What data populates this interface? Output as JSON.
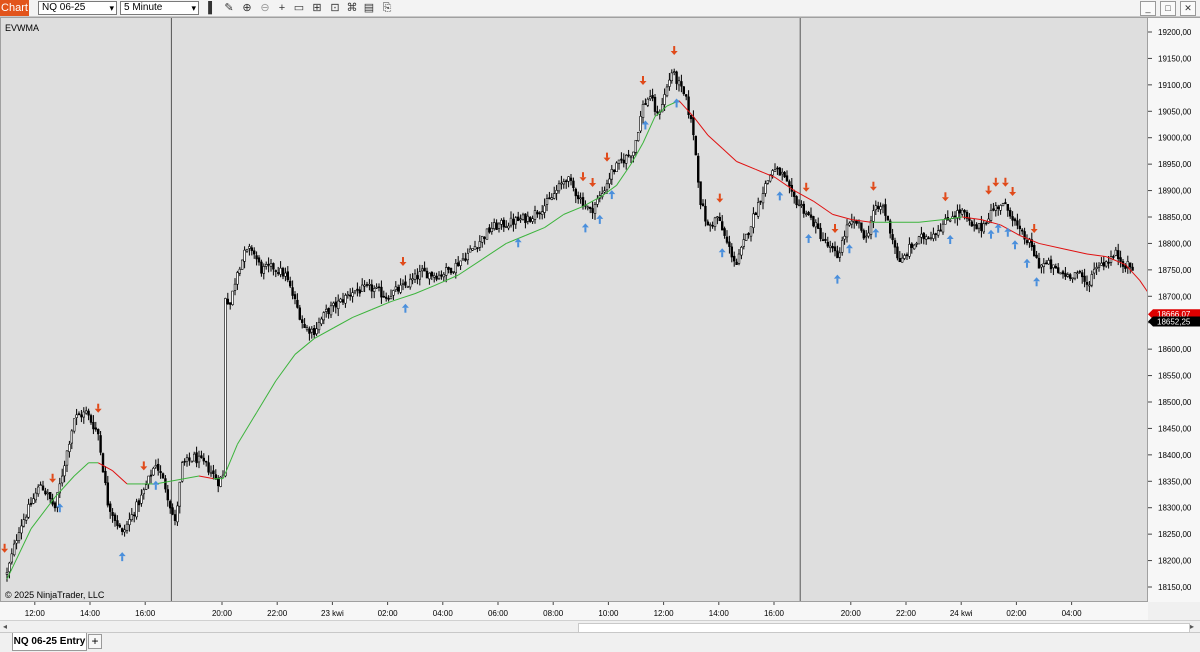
{
  "toolbar": {
    "app_label": "Chart",
    "instrument": "NQ 06-25",
    "interval": "5 Minute",
    "icons": [
      "bar-style-icon",
      "draw-tool-icon",
      "zoom-in-icon",
      "zoom-out-icon",
      "crosshair-icon",
      "data-box-icon",
      "properties-icon",
      "indicators-icon",
      "strategies-icon",
      "template-icon",
      "attach-icon",
      "chart-trader-icon",
      "link-icon"
    ],
    "window_buttons": [
      "minimize-icon",
      "maximize-icon",
      "close-icon"
    ]
  },
  "chart": {
    "indicator_label": "EVWMA",
    "copyright": "© 2025 NinjaTrader, LLC"
  },
  "tabs": {
    "active": "NQ 06-25 Entry",
    "add_label": "+"
  },
  "chart_data": {
    "type": "candlestick",
    "instrument": "NQ 06-25",
    "interval": "5 Minute",
    "ylim": [
      18125,
      19225
    ],
    "y_ticks": [
      18150,
      18200,
      18250,
      18300,
      18350,
      18400,
      18450,
      18500,
      18550,
      18600,
      18650,
      18700,
      18750,
      18800,
      18850,
      18900,
      18950,
      19000,
      19050,
      19100,
      19150,
      19200
    ],
    "y_tick_labels": [
      "18150,00",
      "18200,00",
      "18250,00",
      "18300,00",
      "18350,00",
      "18400,00",
      "18450,00",
      "18500,00",
      "18550,00",
      "18600,00",
      "18650,00",
      "18700,00",
      "18750,00",
      "18800,00",
      "18850,00",
      "18900,00",
      "18950,00",
      "19000,00",
      "19050,00",
      "19100,00",
      "19150,00",
      "19200,00"
    ],
    "x_ticks": [
      {
        "label": "12:00",
        "bar": 12
      },
      {
        "label": "14:00",
        "bar": 35
      },
      {
        "label": "16:00",
        "bar": 58
      },
      {
        "label": "20:00",
        "bar": 90
      },
      {
        "label": "22:00",
        "bar": 113
      },
      {
        "label": "23 kwi",
        "bar": 136
      },
      {
        "label": "02:00",
        "bar": 159
      },
      {
        "label": "04:00",
        "bar": 182
      },
      {
        "label": "06:00",
        "bar": 205
      },
      {
        "label": "08:00",
        "bar": 228
      },
      {
        "label": "10:00",
        "bar": 251
      },
      {
        "label": "12:00",
        "bar": 274
      },
      {
        "label": "14:00",
        "bar": 297
      },
      {
        "label": "16:00",
        "bar": 320
      },
      {
        "label": "20:00",
        "bar": 352
      },
      {
        "label": "22:00",
        "bar": 375
      },
      {
        "label": "24 kwi",
        "bar": 398
      },
      {
        "label": "02:00",
        "bar": 421
      },
      {
        "label": "04:00",
        "bar": 444
      }
    ],
    "session_breaks": [
      69,
      331
    ],
    "bar_count": 470,
    "close_path": [
      [
        0,
        18175
      ],
      [
        5,
        18260
      ],
      [
        14,
        18345
      ],
      [
        20,
        18300
      ],
      [
        28,
        18470
      ],
      [
        33,
        18480
      ],
      [
        38,
        18440
      ],
      [
        42,
        18310
      ],
      [
        48,
        18250
      ],
      [
        56,
        18320
      ],
      [
        62,
        18385
      ],
      [
        66,
        18340
      ],
      [
        70,
        18270
      ],
      [
        73,
        18380
      ],
      [
        78,
        18395
      ],
      [
        83,
        18380
      ],
      [
        88,
        18350
      ],
      [
        90,
        18360
      ],
      [
        91,
        18700
      ],
      [
        93,
        18685
      ],
      [
        96,
        18750
      ],
      [
        99,
        18780
      ],
      [
        102,
        18790
      ],
      [
        106,
        18750
      ],
      [
        111,
        18755
      ],
      [
        116,
        18740
      ],
      [
        120,
        18690
      ],
      [
        124,
        18640
      ],
      [
        128,
        18635
      ],
      [
        133,
        18670
      ],
      [
        139,
        18690
      ],
      [
        144,
        18710
      ],
      [
        152,
        18715
      ],
      [
        158,
        18700
      ],
      [
        166,
        18720
      ],
      [
        173,
        18745
      ],
      [
        180,
        18740
      ],
      [
        186,
        18755
      ],
      [
        192,
        18780
      ],
      [
        196,
        18800
      ],
      [
        202,
        18830
      ],
      [
        210,
        18840
      ],
      [
        218,
        18850
      ],
      [
        226,
        18880
      ],
      [
        233,
        18925
      ],
      [
        238,
        18890
      ],
      [
        243,
        18860
      ],
      [
        248,
        18895
      ],
      [
        252,
        18935
      ],
      [
        256,
        18955
      ],
      [
        261,
        18975
      ],
      [
        265,
        19060
      ],
      [
        268,
        19080
      ],
      [
        271,
        19040
      ],
      [
        274,
        19080
      ],
      [
        277,
        19125
      ],
      [
        280,
        19100
      ],
      [
        283,
        19070
      ],
      [
        286,
        19010
      ],
      [
        289,
        18880
      ],
      [
        292,
        18830
      ],
      [
        296,
        18850
      ],
      [
        300,
        18800
      ],
      [
        304,
        18760
      ],
      [
        307,
        18800
      ],
      [
        311,
        18850
      ],
      [
        315,
        18900
      ],
      [
        319,
        18940
      ],
      [
        323,
        18930
      ],
      [
        327,
        18890
      ],
      [
        331,
        18870
      ],
      [
        336,
        18840
      ],
      [
        341,
        18800
      ],
      [
        346,
        18775
      ],
      [
        350,
        18830
      ],
      [
        354,
        18840
      ],
      [
        358,
        18810
      ],
      [
        361,
        18860
      ],
      [
        365,
        18870
      ],
      [
        369,
        18810
      ],
      [
        372,
        18760
      ],
      [
        376,
        18790
      ],
      [
        381,
        18810
      ],
      [
        386,
        18820
      ],
      [
        390,
        18835
      ],
      [
        394,
        18855
      ],
      [
        398,
        18860
      ],
      [
        402,
        18830
      ],
      [
        406,
        18830
      ],
      [
        410,
        18860
      ],
      [
        414,
        18875
      ],
      [
        418,
        18860
      ],
      [
        422,
        18820
      ],
      [
        426,
        18800
      ],
      [
        430,
        18760
      ],
      [
        434,
        18760
      ],
      [
        438,
        18745
      ],
      [
        442,
        18740
      ],
      [
        446,
        18745
      ],
      [
        450,
        18720
      ],
      [
        454,
        18760
      ],
      [
        458,
        18765
      ],
      [
        462,
        18780
      ],
      [
        466,
        18760
      ],
      [
        470,
        18750
      ]
    ],
    "evwma_path": [
      [
        0,
        18165
      ],
      [
        10,
        18260
      ],
      [
        20,
        18320
      ],
      [
        28,
        18360
      ],
      [
        34,
        18385
      ],
      [
        38,
        18385
      ],
      [
        44,
        18370
      ],
      [
        50,
        18345
      ],
      [
        56,
        18345
      ],
      [
        62,
        18345
      ],
      [
        68,
        18350
      ],
      [
        74,
        18355
      ],
      [
        80,
        18360
      ],
      [
        86,
        18355
      ],
      [
        90,
        18355
      ],
      [
        96,
        18420
      ],
      [
        104,
        18480
      ],
      [
        112,
        18540
      ],
      [
        120,
        18590
      ],
      [
        128,
        18620
      ],
      [
        136,
        18640
      ],
      [
        144,
        18660
      ],
      [
        152,
        18675
      ],
      [
        160,
        18690
      ],
      [
        170,
        18705
      ],
      [
        178,
        18720
      ],
      [
        188,
        18740
      ],
      [
        198,
        18770
      ],
      [
        208,
        18800
      ],
      [
        216,
        18815
      ],
      [
        224,
        18830
      ],
      [
        232,
        18855
      ],
      [
        240,
        18870
      ],
      [
        248,
        18890
      ],
      [
        254,
        18910
      ],
      [
        260,
        18950
      ],
      [
        265,
        18990
      ],
      [
        270,
        19040
      ],
      [
        275,
        19060
      ],
      [
        280,
        19070
      ],
      [
        286,
        19040
      ],
      [
        292,
        19005
      ],
      [
        298,
        18980
      ],
      [
        304,
        18955
      ],
      [
        312,
        18940
      ],
      [
        320,
        18925
      ],
      [
        328,
        18900
      ],
      [
        336,
        18880
      ],
      [
        344,
        18855
      ],
      [
        352,
        18845
      ],
      [
        360,
        18840
      ],
      [
        370,
        18840
      ],
      [
        380,
        18840
      ],
      [
        390,
        18845
      ],
      [
        398,
        18850
      ],
      [
        406,
        18845
      ],
      [
        414,
        18835
      ],
      [
        422,
        18815
      ],
      [
        430,
        18800
      ],
      [
        440,
        18790
      ],
      [
        450,
        18780
      ],
      [
        458,
        18775
      ],
      [
        466,
        18760
      ],
      [
        472,
        18730
      ],
      [
        478,
        18690
      ],
      [
        484,
        18667
      ]
    ],
    "signals": [
      {
        "bar": -1,
        "type": "sell"
      },
      {
        "bar": 19,
        "type": "sell"
      },
      {
        "bar": 22,
        "type": "buy"
      },
      {
        "bar": 38,
        "type": "sell"
      },
      {
        "bar": 48,
        "type": "buy"
      },
      {
        "bar": 57,
        "type": "sell"
      },
      {
        "bar": 62,
        "type": "buy"
      },
      {
        "bar": 165,
        "type": "sell"
      },
      {
        "bar": 166,
        "type": "buy"
      },
      {
        "bar": 213,
        "type": "buy"
      },
      {
        "bar": 240,
        "type": "sell"
      },
      {
        "bar": 241,
        "type": "buy"
      },
      {
        "bar": 244,
        "type": "sell"
      },
      {
        "bar": 247,
        "type": "buy"
      },
      {
        "bar": 250,
        "type": "sell"
      },
      {
        "bar": 252,
        "type": "buy"
      },
      {
        "bar": 265,
        "type": "sell"
      },
      {
        "bar": 266,
        "type": "buy"
      },
      {
        "bar": 278,
        "type": "sell"
      },
      {
        "bar": 279,
        "type": "buy"
      },
      {
        "bar": 297,
        "type": "sell"
      },
      {
        "bar": 298,
        "type": "buy"
      },
      {
        "bar": 322,
        "type": "buy"
      },
      {
        "bar": 333,
        "type": "sell"
      },
      {
        "bar": 334,
        "type": "buy"
      },
      {
        "bar": 345,
        "type": "sell"
      },
      {
        "bar": 346,
        "type": "buy"
      },
      {
        "bar": 351,
        "type": "buy"
      },
      {
        "bar": 361,
        "type": "sell"
      },
      {
        "bar": 362,
        "type": "buy"
      },
      {
        "bar": 391,
        "type": "sell"
      },
      {
        "bar": 393,
        "type": "buy"
      },
      {
        "bar": 409,
        "type": "sell"
      },
      {
        "bar": 410,
        "type": "buy"
      },
      {
        "bar": 412,
        "type": "sell"
      },
      {
        "bar": 413,
        "type": "buy"
      },
      {
        "bar": 416,
        "type": "sell"
      },
      {
        "bar": 417,
        "type": "buy"
      },
      {
        "bar": 419,
        "type": "sell"
      },
      {
        "bar": 420,
        "type": "buy"
      },
      {
        "bar": 425,
        "type": "buy"
      },
      {
        "bar": 428,
        "type": "sell"
      },
      {
        "bar": 429,
        "type": "buy"
      }
    ],
    "price_markers": [
      {
        "label": "18666,07",
        "value": 18666.07,
        "color": "#dd0000"
      },
      {
        "label": "18652,25",
        "value": 18652.25,
        "color": "#000000"
      }
    ],
    "colors": {
      "background": "#dedede",
      "candle": "#000000",
      "evwma_up": "#3cb43c",
      "evwma_down": "#e01010",
      "sell_arrow": "#e04a1a",
      "buy_arrow": "#4a8fdc"
    }
  }
}
